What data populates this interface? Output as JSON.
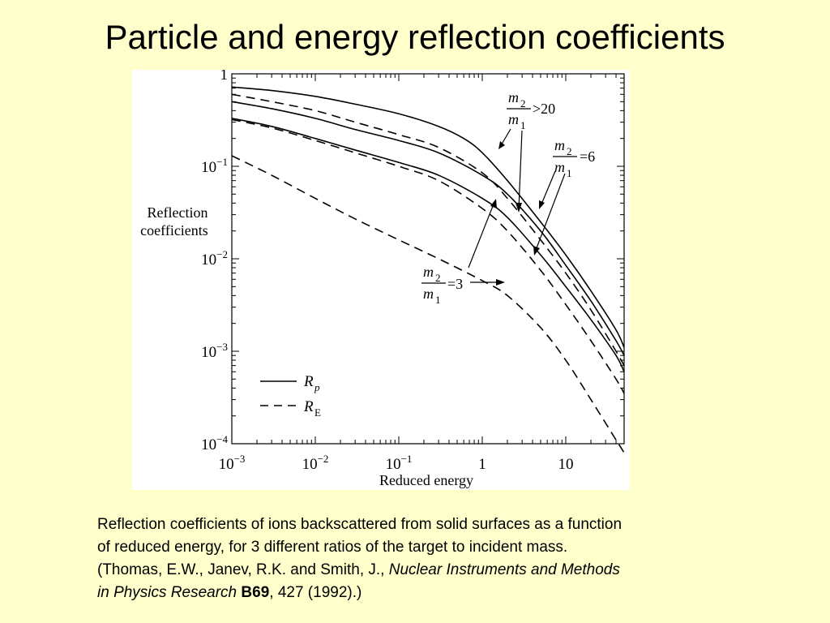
{
  "slide": {
    "title": "Particle and energy reflection coefficients"
  },
  "caption": {
    "line1": "Reflection coefficients of ions backscattered from solid surfaces as a function",
    "line2": "of reduced energy, for 3 different ratios of the target to incident mass.",
    "line3_pre": "(Thomas, E.W., Janev, R.K. and Smith, J., ",
    "journal_part1": "Nuclear Instruments and Methods",
    "journal_part2": "in Physics Research",
    "volume": "B69",
    "line4_post": ", 427 (1992).)"
  },
  "colors": {
    "background": "#FFFFCC",
    "plot_background": "#FFFFFF",
    "ink": "#000000"
  },
  "chart_data": {
    "type": "line",
    "x_scale": "log",
    "y_scale": "log",
    "xlabel": "Reduced energy",
    "ylabel_line1": "Reflection",
    "ylabel_line2": "coefficients",
    "xlim": [
      0.001,
      50
    ],
    "ylim": [
      0.0001,
      1
    ],
    "x_ticks": [
      {
        "value": 0.001,
        "base": "10",
        "exp": "−3"
      },
      {
        "value": 0.01,
        "base": "10",
        "exp": "−2"
      },
      {
        "value": 0.1,
        "base": "10",
        "exp": "−1"
      },
      {
        "value": 1,
        "base": "1",
        "exp": ""
      },
      {
        "value": 10,
        "base": "10",
        "exp": ""
      }
    ],
    "y_ticks": [
      {
        "value": 1,
        "base": "1",
        "exp": ""
      },
      {
        "value": 0.1,
        "base": "10",
        "exp": "−1"
      },
      {
        "value": 0.01,
        "base": "10",
        "exp": "−2"
      },
      {
        "value": 0.001,
        "base": "10",
        "exp": "−3"
      },
      {
        "value": 0.0001,
        "base": "10",
        "exp": "−4"
      }
    ],
    "legend": {
      "placement": "lower-left",
      "entries": [
        {
          "style": "solid",
          "symbol": "R",
          "sub": "p"
        },
        {
          "style": "dashed",
          "symbol": "R",
          "sub": "E"
        }
      ]
    },
    "annotations": [
      {
        "num": "m",
        "num_sub": "2",
        "den": "m",
        "den_sub": "1",
        "rel": ">20"
      },
      {
        "num": "m",
        "num_sub": "2",
        "den": "m",
        "den_sub": "1",
        "rel": "=6"
      },
      {
        "num": "m",
        "num_sub": "2",
        "den": "m",
        "den_sub": "1",
        "rel": "=3"
      }
    ],
    "series": [
      {
        "ratio": ">20",
        "quantity": "Rp",
        "style": "solid",
        "x": [
          0.001,
          0.003,
          0.01,
          0.03,
          0.1,
          0.3,
          0.6,
          1,
          2,
          5,
          10,
          20,
          40,
          50
        ],
        "y": [
          0.72,
          0.66,
          0.57,
          0.47,
          0.37,
          0.27,
          0.2,
          0.14,
          0.07,
          0.025,
          0.011,
          0.0045,
          0.0017,
          0.0011
        ]
      },
      {
        "ratio": "=6",
        "quantity": "Rp",
        "style": "solid",
        "x": [
          0.001,
          0.003,
          0.01,
          0.03,
          0.1,
          0.3,
          1,
          2,
          5,
          10,
          20,
          40,
          50
        ],
        "y": [
          0.5,
          0.42,
          0.33,
          0.25,
          0.19,
          0.14,
          0.08,
          0.05,
          0.02,
          0.0085,
          0.0035,
          0.0013,
          0.0009
        ]
      },
      {
        "ratio": "=3",
        "quantity": "Rp",
        "style": "solid",
        "x": [
          0.001,
          0.003,
          0.01,
          0.03,
          0.1,
          0.3,
          1,
          2,
          5,
          10,
          20,
          40,
          50
        ],
        "y": [
          0.33,
          0.27,
          0.2,
          0.15,
          0.11,
          0.08,
          0.045,
          0.028,
          0.011,
          0.005,
          0.0022,
          0.0009,
          0.0006
        ]
      },
      {
        "ratio": ">20",
        "quantity": "RE",
        "style": "dashed",
        "x": [
          0.001,
          0.003,
          0.01,
          0.03,
          0.1,
          0.3,
          1,
          2,
          5,
          10,
          20,
          40,
          50
        ],
        "y": [
          0.6,
          0.5,
          0.4,
          0.3,
          0.22,
          0.16,
          0.085,
          0.045,
          0.016,
          0.007,
          0.0028,
          0.001,
          0.0007
        ]
      },
      {
        "ratio": "=6",
        "quantity": "RE",
        "style": "dashed",
        "x": [
          0.001,
          0.003,
          0.01,
          0.03,
          0.1,
          0.3,
          1,
          2,
          5,
          10,
          20,
          40,
          50
        ],
        "y": [
          0.32,
          0.26,
          0.19,
          0.14,
          0.1,
          0.07,
          0.035,
          0.02,
          0.0075,
          0.0032,
          0.0013,
          0.0005,
          0.00035
        ]
      },
      {
        "ratio": "=3",
        "quantity": "RE",
        "style": "dashed",
        "x": [
          0.001,
          0.003,
          0.01,
          0.03,
          0.1,
          0.3,
          1,
          2,
          5,
          10,
          20,
          40,
          50
        ],
        "y": [
          0.13,
          0.08,
          0.045,
          0.027,
          0.016,
          0.01,
          0.0058,
          0.004,
          0.0018,
          0.0008,
          0.0003,
          0.00011,
          8e-05
        ]
      }
    ]
  }
}
